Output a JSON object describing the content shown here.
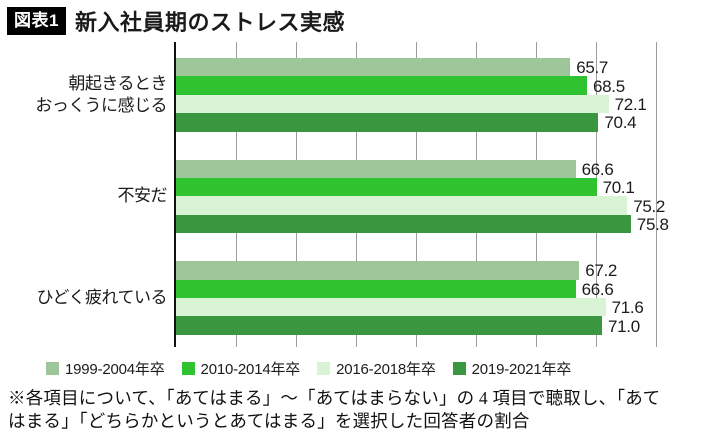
{
  "title": {
    "badge": "図表1",
    "text": "新入社員期のストレス実感"
  },
  "chart_data": {
    "type": "bar",
    "orientation": "horizontal",
    "title": "新入社員期のストレス実感",
    "categories": [
      {
        "lines": [
          "朝起きるとき",
          "おっくうに感じる"
        ]
      },
      {
        "lines": [
          "不安だ"
        ]
      },
      {
        "lines": [
          "ひどく疲れている"
        ]
      }
    ],
    "series": [
      {
        "name": "1999-2004年卒",
        "color": "#9dc79b",
        "values": [
          65.7,
          66.6,
          67.2
        ]
      },
      {
        "name": "2010-2014年卒",
        "color": "#2fc42f",
        "values": [
          68.5,
          70.1,
          66.6
        ]
      },
      {
        "name": "2016-2018年卒",
        "color": "#d8f4d4",
        "values": [
          72.1,
          75.2,
          71.6
        ]
      },
      {
        "name": "2019-2021年卒",
        "color": "#3a9740",
        "values": [
          70.4,
          75.8,
          71.0
        ]
      }
    ],
    "xlim": [
      0,
      81
    ],
    "gridline_interval": 10,
    "grid": true,
    "value_labels": true,
    "legend_position": "bottom",
    "axis_color": "#111111",
    "gridline_color": "#9c9c9c"
  },
  "footnote": {
    "line1": "※各項目について、「あてはまる」～「あてはまらない」の 4 項目で聴取し、「あて",
    "line2": "はまる」「どちらかというとあてはまる」を選択した回答者の割合"
  }
}
